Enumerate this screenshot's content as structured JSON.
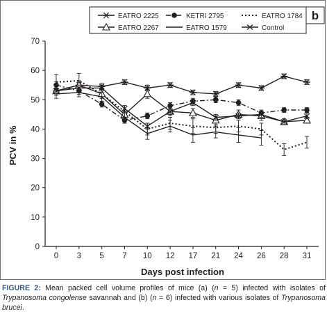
{
  "panel_label": "b",
  "chart_data": {
    "type": "line",
    "xlabel": "Days post infection",
    "ylabel": "PCV in %",
    "x": [
      0,
      3,
      5,
      7,
      10,
      12,
      17,
      21,
      24,
      26,
      28,
      31
    ],
    "x_tick_labels": [
      "0",
      "3",
      "5",
      "7",
      "10",
      "12",
      "17",
      "21",
      "24",
      "26",
      "28",
      "31"
    ],
    "ylim": [
      0,
      70
    ],
    "y_ticks": [
      0,
      10,
      20,
      30,
      40,
      50,
      60,
      70
    ],
    "grid": false,
    "legend_position": "top",
    "series": [
      {
        "name": "EATRO 2225",
        "marker": "asterisk",
        "line": "solid",
        "color": "#231f20",
        "values": [
          53,
          55,
          54.5,
          56,
          54,
          55,
          52.5,
          52,
          55,
          54,
          58,
          56
        ],
        "err": [
          1,
          1,
          1,
          0.8,
          1,
          0.8,
          0.8,
          0.8,
          0.8,
          0.8,
          0.8,
          0.8
        ]
      },
      {
        "name": "KETRI 2795",
        "marker": "filled-circle",
        "line": "dash-dot",
        "color": "#231f20",
        "values": [
          55,
          53,
          48.5,
          43,
          44.5,
          48,
          49.5,
          50,
          49,
          45.5,
          46.5,
          46.5
        ],
        "err": [
          1.2,
          1.2,
          1,
          1,
          1,
          1,
          1,
          1,
          1,
          1,
          0.8,
          0.8
        ]
      },
      {
        "name": "EATRO 1784",
        "marker": "none",
        "line": "dotted",
        "color": "#231f20",
        "values": [
          56,
          56.5,
          52,
          46,
          40,
          42,
          41,
          40.5,
          41,
          40,
          33,
          35.5
        ],
        "err": [
          2.5,
          2.5,
          1.5,
          2,
          2,
          2,
          2.5,
          2,
          2,
          2,
          2,
          2
        ]
      },
      {
        "name": "EATRO 2267",
        "marker": "open-triangle",
        "line": "solid",
        "color": "#231f20",
        "values": [
          53,
          55,
          52,
          45,
          52,
          46,
          45.5,
          43,
          45,
          44.5,
          42.5,
          43
        ],
        "err": [
          1.5,
          1.5,
          1.5,
          1.5,
          1.5,
          1.5,
          1.5,
          1.5,
          1.5,
          1.5,
          1,
          1
        ]
      },
      {
        "name": "EATRO 1579",
        "marker": "none",
        "line": "solid",
        "color": "#231f20",
        "values": [
          52,
          52.5,
          51,
          44,
          38.5,
          41,
          38,
          39,
          38,
          37,
          null,
          null
        ],
        "err": [
          1.5,
          1.5,
          1.5,
          2,
          2,
          2,
          2.5,
          2,
          2.5,
          2.5,
          null,
          null
        ]
      },
      {
        "name": "Control",
        "marker": "x",
        "line": "solid",
        "color": "#231f20",
        "values": [
          53,
          54,
          54,
          47,
          41,
          46,
          49,
          44,
          44.5,
          45,
          42.5,
          44.5
        ],
        "err": [
          1,
          1,
          1,
          1,
          1,
          1,
          1,
          1,
          1,
          1,
          1,
          1
        ]
      }
    ]
  },
  "caption": {
    "label": "FIGURE 2:",
    "text_1": " Mean packed cell volume profiles of mice (a) (",
    "n_var_1": "n",
    "text_2": " = 5) infected with isolates of ",
    "species_1": "Trypanosoma congolense",
    "text_3": " savannah and (b) (",
    "n_var_2": "n",
    "text_4": " = 6) infected with various isolates of ",
    "species_2": "Trypanosoma brucei",
    "text_5": "."
  }
}
